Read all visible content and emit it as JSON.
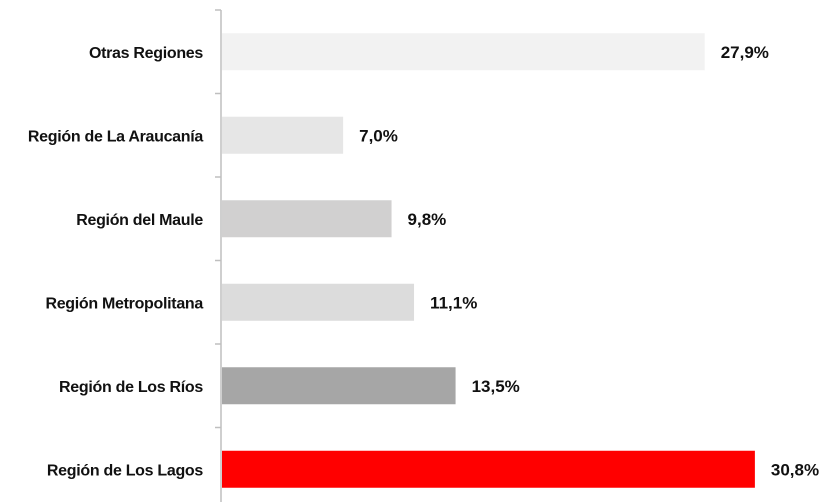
{
  "chart_data": {
    "type": "bar",
    "orientation": "horizontal",
    "title": "",
    "xlabel": "",
    "ylabel": "",
    "grid": false,
    "xlim": [
      0,
      31.5
    ],
    "categories": [
      "Otras Regiones",
      "Región de La Araucanía",
      "Región del Maule",
      "Región Metropolitana",
      "Región de Los Ríos",
      "Región de Los Lagos"
    ],
    "values": [
      27.9,
      7.0,
      9.8,
      11.1,
      13.5,
      30.8
    ],
    "value_labels": [
      "27,9%",
      "7,0%",
      "9,8%",
      "11,1%",
      "13,5%",
      "30,8%"
    ],
    "colors": [
      "#f2f2f2",
      "#e6e6e6",
      "#d1d0d0",
      "#dcdcdc",
      "#a6a6a6",
      "#ff0000"
    ]
  }
}
